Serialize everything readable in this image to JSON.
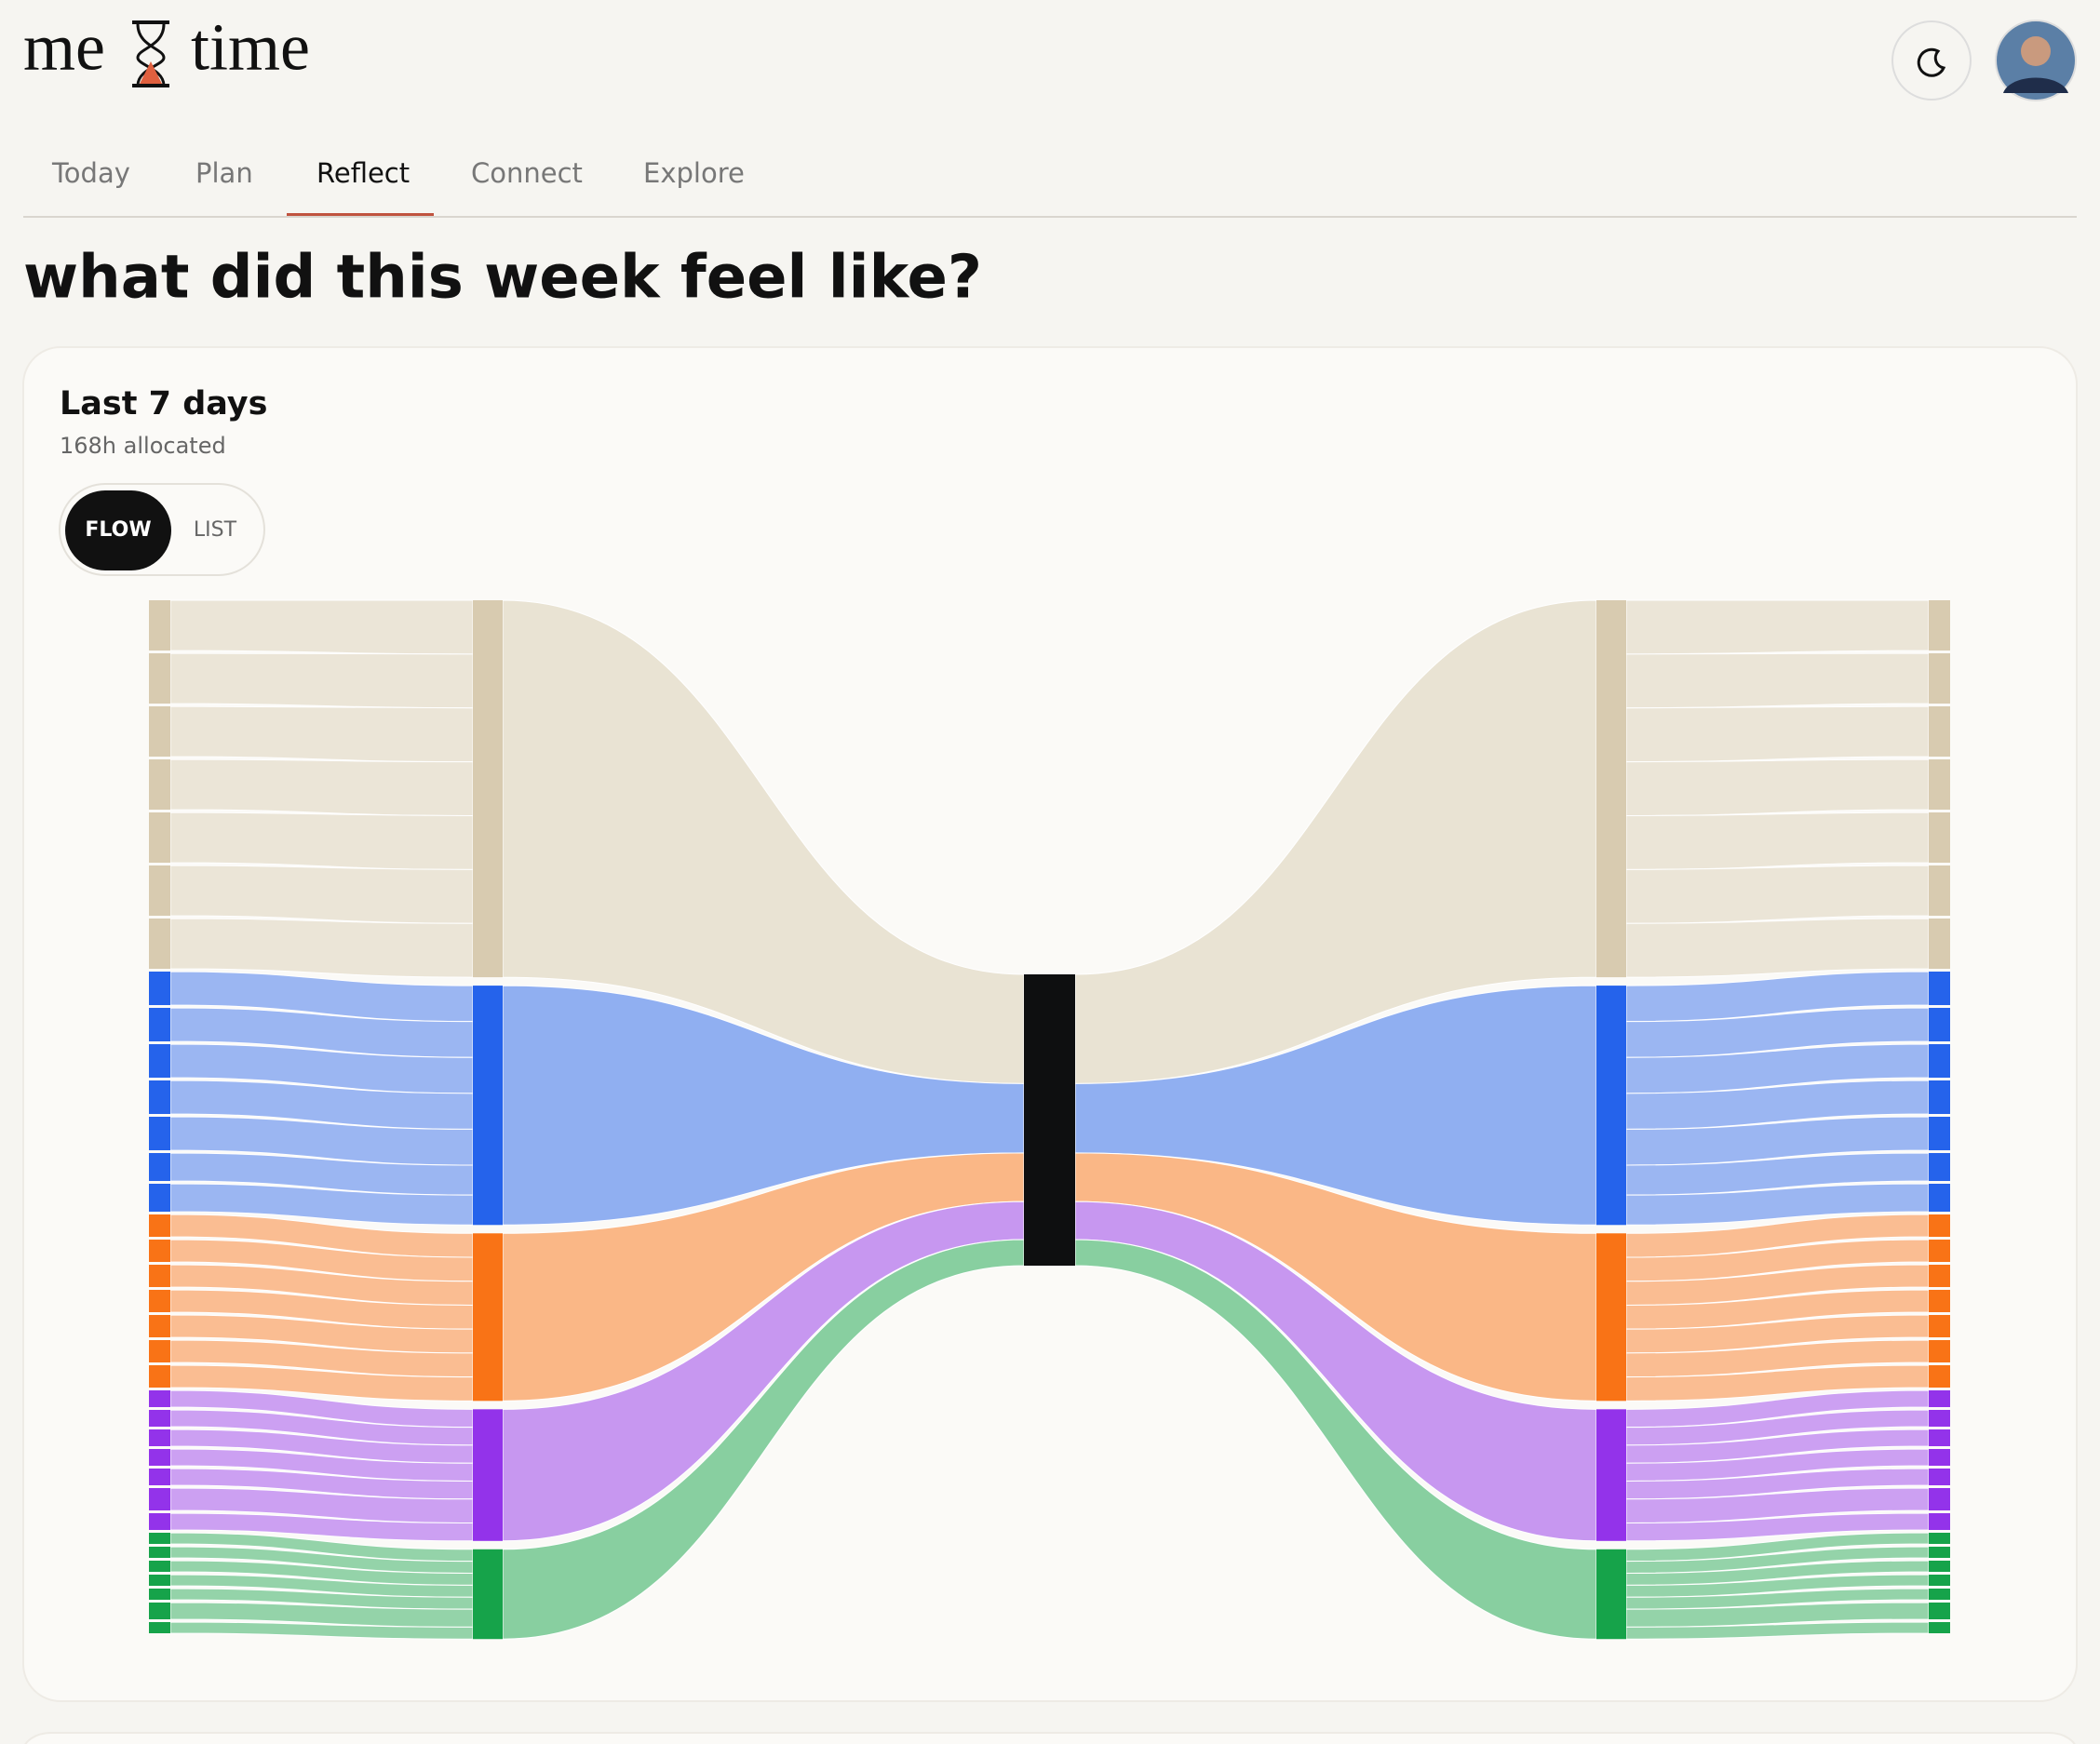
{
  "header": {
    "logo_left": "me",
    "logo_right": "time"
  },
  "nav": {
    "tabs": [
      "Today",
      "Plan",
      "Reflect",
      "Connect",
      "Explore"
    ],
    "active": 2
  },
  "page_title": "what did this week feel like?",
  "card": {
    "title": "Last 7 days",
    "subtitle": "168h allocated",
    "toggle": [
      "FLOW",
      "LIST"
    ],
    "active": 0
  },
  "chart_data": {
    "type": "sankey",
    "series": [
      {
        "color": "#d8cbb0",
        "values": [
          9,
          9,
          9,
          9,
          9,
          9,
          9
        ]
      },
      {
        "color": "#2563eb",
        "values": [
          6,
          6,
          6,
          6,
          6,
          5,
          5
        ]
      },
      {
        "color": "#f97316",
        "values": [
          4,
          4,
          4,
          4,
          4,
          4,
          4
        ]
      },
      {
        "color": "#9333ea",
        "values": [
          3,
          3,
          3,
          3,
          3,
          4,
          3
        ]
      },
      {
        "color": "#16a34a",
        "values": [
          2,
          2,
          2,
          2,
          2,
          3,
          2
        ]
      }
    ]
  }
}
